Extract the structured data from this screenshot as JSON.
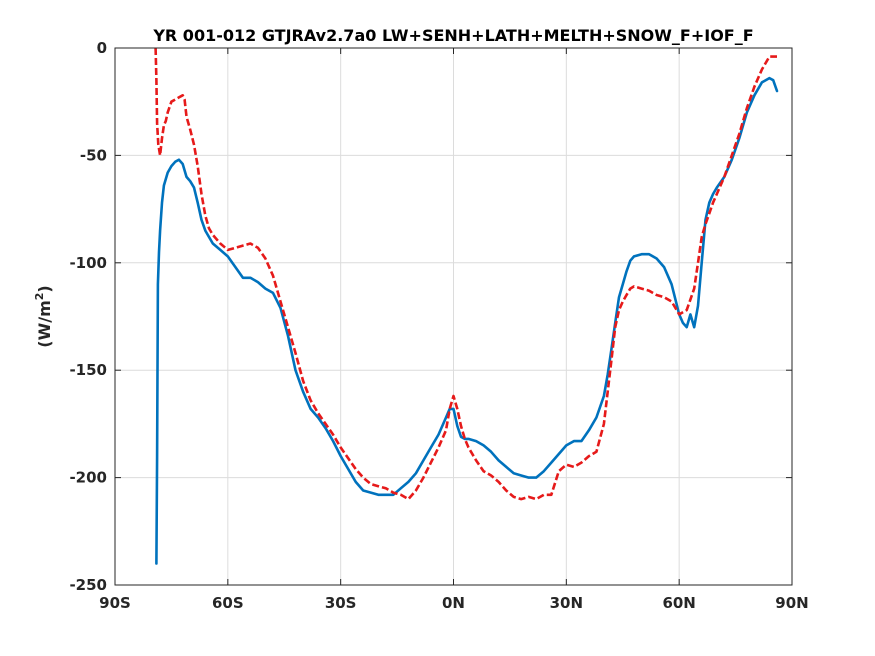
{
  "chart_data": {
    "type": "line",
    "title": "YR 001-012 GTJRAv2.7a0 LW+SENH+LATH+MELTH+SNOW_F+IOF_F",
    "xlabel": "",
    "ylabel": "(W/m",
    "ylabel_sup": "2",
    "ylabel_close": ")",
    "xlim": [
      -90,
      90
    ],
    "ylim": [
      -250,
      0
    ],
    "xticks": [
      -90,
      -60,
      -30,
      0,
      30,
      60,
      90
    ],
    "xtick_labels": [
      "90S",
      "60S",
      "30S",
      "0N",
      "30N",
      "60N",
      "90N"
    ],
    "yticks": [
      -250,
      -200,
      -150,
      -100,
      -50,
      0
    ],
    "ytick_labels": [
      "-250",
      "-200",
      "-150",
      "-100",
      "-50",
      "0"
    ],
    "grid": true,
    "legend": "none",
    "series": [
      {
        "color": "#0072bd",
        "style": "solid",
        "x": [
          -79,
          -78.8,
          -78.6,
          -78.3,
          -78,
          -77.5,
          -77,
          -76,
          -75,
          -74,
          -73,
          -72,
          -71,
          -70,
          -69,
          -68,
          -67,
          -66,
          -65,
          -64,
          -62,
          -60,
          -58,
          -56,
          -54,
          -52,
          -50,
          -48,
          -46,
          -44,
          -42,
          -40,
          -38,
          -36,
          -34,
          -32,
          -30,
          -28,
          -26,
          -24,
          -22,
          -20,
          -18,
          -16,
          -14,
          -12,
          -10,
          -8,
          -6,
          -4,
          -2,
          -1,
          0,
          1,
          2,
          3,
          4,
          6,
          8,
          10,
          12,
          14,
          16,
          18,
          20,
          22,
          24,
          26,
          28,
          30,
          32,
          34,
          36,
          38,
          40,
          41,
          42,
          43,
          44,
          45,
          46,
          47,
          48,
          50,
          52,
          54,
          56,
          58,
          60,
          61,
          62,
          63,
          64,
          65,
          66,
          67,
          68,
          69,
          70,
          72,
          74,
          76,
          78,
          80,
          82,
          84,
          85,
          86
        ],
        "y": [
          -240,
          -190,
          -110,
          -95,
          -85,
          -72,
          -64,
          -58,
          -55,
          -53,
          -52,
          -54,
          -60,
          -62,
          -65,
          -72,
          -80,
          -85,
          -88,
          -91,
          -94,
          -97,
          -102,
          -107,
          -107,
          -109,
          -112,
          -114,
          -121,
          -134,
          -150,
          -160,
          -168,
          -172,
          -177,
          -183,
          -190,
          -196,
          -202,
          -206,
          -207,
          -208,
          -208,
          -208,
          -205,
          -202,
          -198,
          -192,
          -186,
          -180,
          -172,
          -168,
          -168,
          -176,
          -181,
          -182,
          -182,
          -183,
          -185,
          -188,
          -192,
          -195,
          -198,
          -199,
          -200,
          -200,
          -197,
          -193,
          -189,
          -185,
          -183,
          -183,
          -178,
          -172,
          -162,
          -152,
          -140,
          -128,
          -116,
          -110,
          -104,
          -99,
          -97,
          -96,
          -96,
          -98,
          -102,
          -110,
          -124,
          -128,
          -130,
          -124,
          -130,
          -120,
          -100,
          -80,
          -72,
          -68,
          -65,
          -60,
          -52,
          -42,
          -30,
          -22,
          -16,
          -14,
          -15,
          -20
        ]
      },
      {
        "color": "#e61a1a",
        "style": "dashed",
        "x": [
          -79.2,
          -79,
          -78.8,
          -78.5,
          -78.2,
          -78,
          -77.5,
          -77,
          -76.5,
          -76,
          -75,
          -74,
          -73,
          -72,
          -71.5,
          -71,
          -70,
          -69,
          -68,
          -67,
          -66,
          -65,
          -64,
          -62,
          -60,
          -58,
          -56,
          -54,
          -52,
          -50,
          -48,
          -46,
          -44,
          -42,
          -40,
          -38,
          -36,
          -34,
          -32,
          -30,
          -28,
          -26,
          -24,
          -22,
          -20,
          -18,
          -16,
          -14,
          -12,
          -10,
          -8,
          -6,
          -4,
          -2,
          -1,
          0,
          1,
          2,
          3,
          4,
          6,
          8,
          10,
          12,
          14,
          16,
          18,
          20,
          22,
          24,
          26,
          28,
          30,
          32,
          34,
          36,
          38,
          40,
          41,
          42,
          43,
          44,
          45,
          46,
          47,
          48,
          50,
          52,
          54,
          56,
          58,
          60,
          62,
          64,
          65,
          66,
          67,
          68,
          69,
          70,
          72,
          74,
          76,
          78,
          80,
          82,
          84,
          86
        ],
        "y": [
          0,
          -15,
          -35,
          -45,
          -48,
          -50,
          -42,
          -36,
          -34,
          -30,
          -25,
          -24,
          -23,
          -22,
          -24,
          -32,
          -38,
          -45,
          -55,
          -68,
          -78,
          -84,
          -87,
          -91,
          -94,
          -93,
          -92,
          -91,
          -93,
          -98,
          -106,
          -118,
          -130,
          -142,
          -155,
          -164,
          -170,
          -175,
          -180,
          -186,
          -191,
          -196,
          -200,
          -203,
          -204,
          -205,
          -207,
          -208,
          -210,
          -206,
          -200,
          -193,
          -186,
          -178,
          -168,
          -162,
          -168,
          -176,
          -182,
          -186,
          -192,
          -197,
          -199,
          -202,
          -206,
          -209,
          -210,
          -209,
          -210,
          -208,
          -208,
          -197,
          -194,
          -195,
          -193,
          -190,
          -188,
          -175,
          -160,
          -145,
          -130,
          -122,
          -118,
          -115,
          -112,
          -111,
          -112,
          -113,
          -115,
          -116,
          -118,
          -124,
          -122,
          -112,
          -100,
          -88,
          -82,
          -77,
          -72,
          -68,
          -60,
          -50,
          -40,
          -28,
          -18,
          -10,
          -4,
          -4
        ]
      }
    ]
  }
}
